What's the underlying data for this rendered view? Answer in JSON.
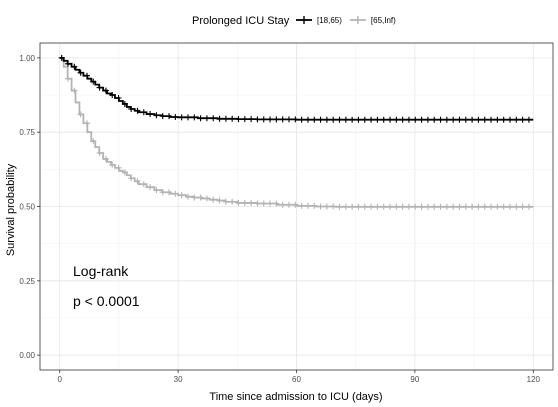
{
  "chart_data": {
    "type": "line",
    "subtype": "kaplan-meier",
    "xlabel": "Time since admission to ICU (days)",
    "ylabel": "Survival probability",
    "xlim": [
      -5,
      125
    ],
    "ylim": [
      -0.05,
      1.05
    ],
    "x_ticks": [
      0,
      30,
      60,
      90,
      120
    ],
    "x_tick_labels": [
      "0",
      "30",
      "60",
      "90",
      "120"
    ],
    "y_ticks": [
      0.0,
      0.25,
      0.5,
      0.75,
      1.0
    ],
    "y_tick_labels": [
      "0.00",
      "0.25",
      "0.50",
      "0.75",
      "1.00"
    ],
    "grid": true,
    "legend": {
      "title": "Prolonged ICU Stay",
      "position": "top"
    },
    "annotations": [
      "Log-rank",
      "p < 0.0001"
    ],
    "series": [
      {
        "name": "[18,65)",
        "color": "#000000",
        "x": [
          0,
          1,
          2,
          3,
          4,
          5,
          6,
          7,
          8,
          9,
          10,
          11,
          12,
          13,
          14,
          15,
          16,
          17,
          18,
          19,
          20,
          22,
          24,
          26,
          28,
          30,
          35,
          40,
          45,
          50,
          55,
          60,
          70,
          80,
          90,
          100,
          110,
          120
        ],
        "y": [
          1.0,
          0.99,
          0.98,
          0.97,
          0.96,
          0.95,
          0.94,
          0.93,
          0.92,
          0.91,
          0.9,
          0.89,
          0.88,
          0.875,
          0.865,
          0.855,
          0.845,
          0.835,
          0.828,
          0.822,
          0.817,
          0.811,
          0.807,
          0.804,
          0.801,
          0.8,
          0.797,
          0.795,
          0.794,
          0.793,
          0.793,
          0.792,
          0.792,
          0.792,
          0.792,
          0.792,
          0.792,
          0.792
        ]
      },
      {
        "name": "[65,Inf)",
        "color": "#b3b3b3",
        "x": [
          0,
          1,
          2,
          3,
          4,
          5,
          6,
          7,
          8,
          9,
          10,
          11,
          12,
          13,
          14,
          15,
          16,
          17,
          18,
          19,
          20,
          22,
          24,
          26,
          28,
          30,
          32,
          34,
          36,
          38,
          40,
          42,
          45,
          50,
          55,
          60,
          65,
          70,
          80,
          90,
          100,
          110,
          120
        ],
        "y": [
          1.0,
          0.97,
          0.93,
          0.89,
          0.85,
          0.81,
          0.78,
          0.75,
          0.72,
          0.7,
          0.68,
          0.66,
          0.65,
          0.64,
          0.63,
          0.62,
          0.615,
          0.605,
          0.595,
          0.585,
          0.575,
          0.565,
          0.555,
          0.548,
          0.543,
          0.538,
          0.533,
          0.53,
          0.527,
          0.523,
          0.52,
          0.516,
          0.512,
          0.51,
          0.506,
          0.502,
          0.5,
          0.499,
          0.499,
          0.499,
          0.499,
          0.499,
          0.499
        ]
      }
    ]
  }
}
